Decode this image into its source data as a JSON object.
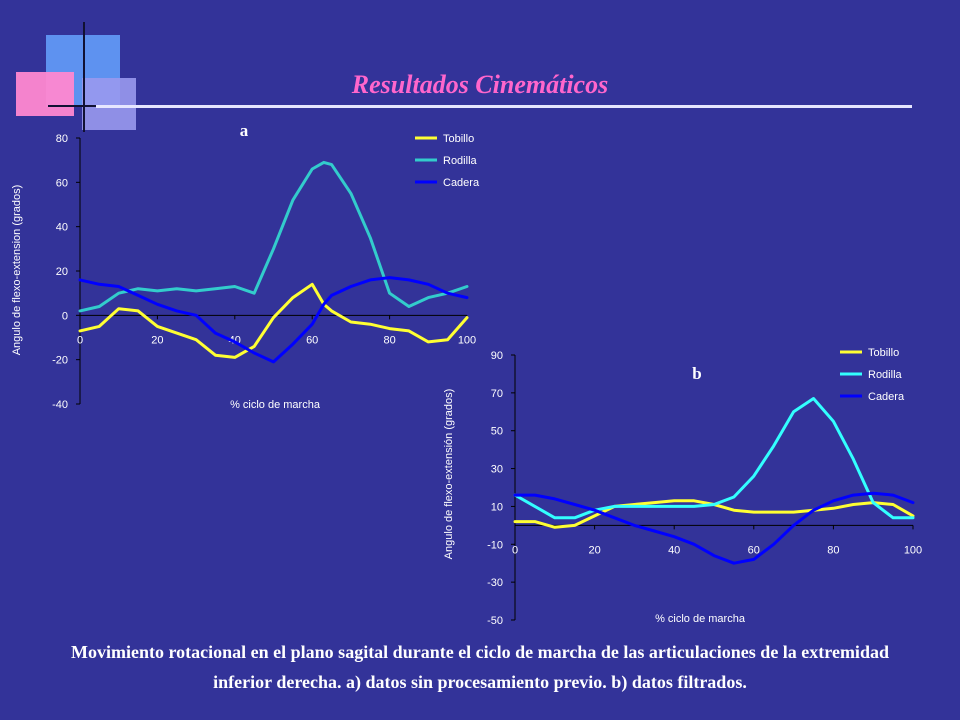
{
  "slide": {
    "title": "Resultados Cinemáticos",
    "caption": "Movimiento rotacional en el plano sagital durante el ciclo de marcha de las articulaciones de la extremidad inferior derecha. a) datos sin procesamiento previo. b) datos filtrados."
  },
  "colors": {
    "background": "#333399",
    "title": "#ff66cc",
    "tobillo": "#ffff33",
    "rodilla_a": "#33cccc",
    "rodilla_b": "#33ffff",
    "cadera": "#0000ff"
  },
  "chart_data": [
    {
      "type": "line",
      "panel_label": "a",
      "xlabel": "% ciclo de marcha",
      "ylabel": "Angulo de flexo-extension (grados)",
      "xlim": [
        0,
        100
      ],
      "ylim": [
        -40,
        80
      ],
      "x_ticks": [
        0,
        20,
        40,
        60,
        80,
        100
      ],
      "y_ticks": [
        -40,
        -20,
        0,
        20,
        40,
        60,
        80
      ],
      "legend_position": "top-right",
      "grid": false,
      "x": [
        0,
        5,
        10,
        15,
        20,
        25,
        30,
        35,
        40,
        45,
        50,
        55,
        60,
        63,
        65,
        70,
        75,
        80,
        85,
        90,
        95,
        100
      ],
      "series": [
        {
          "name": "Tobillo",
          "color_key": "tobillo",
          "values": [
            -7,
            -5,
            3,
            2,
            -5,
            -8,
            -11,
            -18,
            -19,
            -14,
            -1,
            8,
            14,
            5,
            2,
            -3,
            -4,
            -6,
            -7,
            -12,
            -11,
            -1
          ]
        },
        {
          "name": "Rodilla",
          "color_key": "rodilla_a",
          "values": [
            2,
            4,
            10,
            12,
            11,
            12,
            11,
            12,
            13,
            10,
            30,
            52,
            66,
            69,
            68,
            55,
            35,
            10,
            4,
            8,
            10,
            13
          ]
        },
        {
          "name": "Cadera",
          "color_key": "cadera",
          "values": [
            16,
            14,
            13,
            9,
            5,
            2,
            0,
            -8,
            -12,
            -17,
            -21,
            -13,
            -4,
            5,
            9,
            13,
            16,
            17,
            16,
            14,
            10,
            8
          ]
        }
      ]
    },
    {
      "type": "line",
      "panel_label": "b",
      "xlabel": "% ciclo de marcha",
      "ylabel": "Angulo de flexo-extensión (grados)",
      "xlim": [
        0,
        100
      ],
      "ylim": [
        -50,
        90
      ],
      "x_ticks": [
        0,
        20,
        40,
        60,
        80,
        100
      ],
      "y_ticks": [
        -50,
        -30,
        -10,
        10,
        30,
        50,
        70,
        90
      ],
      "legend_position": "top-right",
      "grid": false,
      "x": [
        0,
        5,
        10,
        15,
        20,
        25,
        30,
        35,
        40,
        45,
        50,
        55,
        60,
        65,
        70,
        75,
        80,
        85,
        90,
        95,
        100
      ],
      "series": [
        {
          "name": "Tobillo",
          "color_key": "tobillo",
          "values": [
            2,
            2,
            -1,
            0,
            5,
            10,
            11,
            12,
            13,
            13,
            11,
            8,
            7,
            7,
            7,
            8,
            9,
            11,
            12,
            11,
            5
          ]
        },
        {
          "name": "Rodilla",
          "color_key": "rodilla_b",
          "values": [
            16,
            10,
            4,
            4,
            8,
            10,
            10,
            10,
            10,
            10,
            11,
            15,
            26,
            42,
            60,
            67,
            55,
            35,
            12,
            4,
            4
          ]
        },
        {
          "name": "Cadera",
          "color_key": "cadera",
          "values": [
            16,
            16,
            14,
            11,
            8,
            4,
            0,
            -3,
            -6,
            -10,
            -16,
            -20,
            -18,
            -10,
            0,
            8,
            13,
            16,
            17,
            16,
            12
          ]
        }
      ]
    }
  ]
}
